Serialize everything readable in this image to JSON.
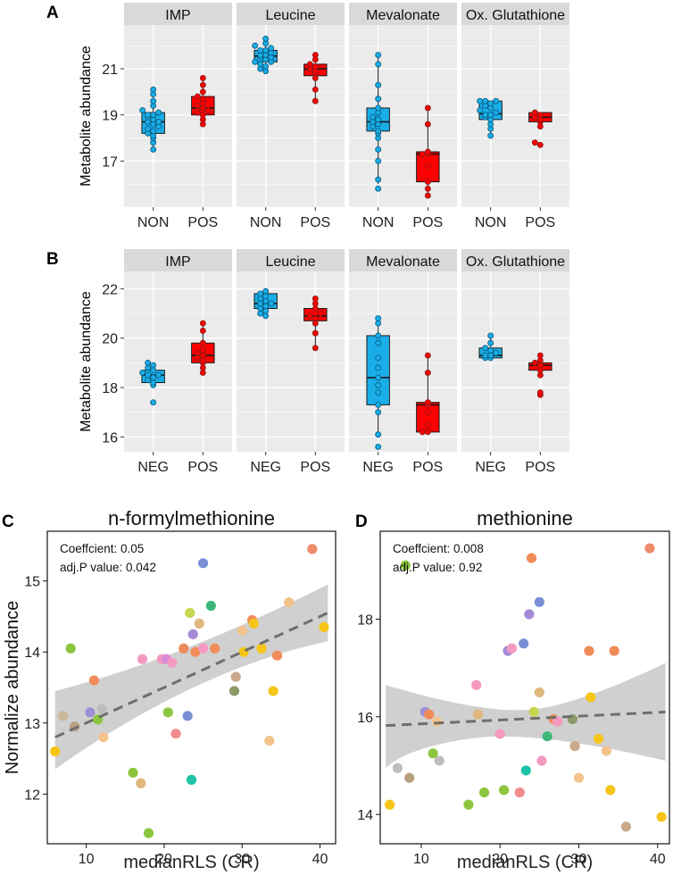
{
  "panel_letters": [
    "A",
    "B",
    "C",
    "D"
  ],
  "chart_data": [
    {
      "panel": "A",
      "type": "boxplot",
      "ylabel": "Metabolite abundance",
      "ylim": [
        15.0,
        22.9
      ],
      "yticks": [
        17,
        19,
        21
      ],
      "facets": [
        {
          "title": "IMP",
          "groups": [
            {
              "label": "NON",
              "color": "#1aaee8",
              "min": 17.5,
              "q1": 18.2,
              "median": 18.7,
              "q3": 19.1,
              "max": 20.1,
              "points": [
                17.5,
                17.8,
                18.0,
                18.1,
                18.2,
                18.3,
                18.4,
                18.5,
                18.6,
                18.7,
                18.7,
                18.8,
                18.9,
                19.0,
                19.0,
                19.1,
                19.2,
                19.4,
                19.6,
                19.9,
                20.1
              ]
            },
            {
              "label": "POS",
              "color": "#ff0000",
              "min": 18.6,
              "q1": 19.0,
              "median": 19.3,
              "q3": 19.8,
              "max": 20.6,
              "points": [
                18.6,
                18.8,
                19.0,
                19.1,
                19.2,
                19.3,
                19.4,
                19.5,
                19.7,
                19.8,
                20.0,
                20.3,
                20.6
              ]
            }
          ]
        },
        {
          "title": "Leucine",
          "groups": [
            {
              "label": "NON",
              "color": "#1aaee8",
              "min": 20.9,
              "q1": 21.3,
              "median": 21.55,
              "q3": 21.8,
              "max": 22.3,
              "points": [
                20.9,
                21.0,
                21.1,
                21.2,
                21.3,
                21.3,
                21.4,
                21.5,
                21.5,
                21.6,
                21.6,
                21.7,
                21.8,
                21.8,
                21.9,
                22.0,
                22.1,
                22.3
              ]
            },
            {
              "label": "POS",
              "color": "#ff0000",
              "min": 19.6,
              "q1": 20.7,
              "median": 21.0,
              "q3": 21.2,
              "max": 21.6,
              "points": [
                19.6,
                20.1,
                20.6,
                20.8,
                20.9,
                21.0,
                21.1,
                21.2,
                21.4,
                21.6
              ]
            }
          ]
        },
        {
          "title": "Mevalonate",
          "groups": [
            {
              "label": "NON",
              "color": "#1aaee8",
              "min": 16.0,
              "q1": 18.3,
              "median": 18.7,
              "q3": 19.3,
              "max": 21.6,
              "points": [
                15.8,
                16.2,
                17.0,
                17.5,
                18.0,
                18.2,
                18.3,
                18.5,
                18.6,
                18.7,
                18.8,
                18.9,
                19.1,
                19.3,
                19.7,
                20.3,
                21.2,
                21.6
              ]
            },
            {
              "label": "POS",
              "color": "#ff0000",
              "min": 15.5,
              "q1": 16.1,
              "median": 17.3,
              "q3": 17.4,
              "max": 19.3,
              "points": [
                15.5,
                15.8,
                16.1,
                16.8,
                17.3,
                17.3,
                17.4,
                18.6,
                19.3
              ]
            }
          ]
        },
        {
          "title": "Ox. Glutathione",
          "groups": [
            {
              "label": "NON",
              "color": "#1aaee8",
              "min": 18.1,
              "q1": 18.8,
              "median": 19.05,
              "q3": 19.6,
              "max": 19.6,
              "points": [
                18.1,
                18.4,
                18.6,
                18.8,
                18.9,
                19.0,
                19.0,
                19.1,
                19.2,
                19.3,
                19.4,
                19.5,
                19.6,
                19.6,
                19.6
              ]
            },
            {
              "label": "POS",
              "color": "#ff0000",
              "min": 18.5,
              "q1": 18.7,
              "median": 18.9,
              "q3": 19.1,
              "max": 19.1,
              "points": [
                17.7,
                17.8,
                18.5,
                18.7,
                18.8,
                18.9,
                19.0,
                19.1
              ]
            }
          ]
        }
      ]
    },
    {
      "panel": "B",
      "type": "boxplot",
      "ylabel": "Metabolite abundance",
      "ylim": [
        15.4,
        22.7
      ],
      "yticks": [
        16,
        18,
        20,
        22
      ],
      "facets": [
        {
          "title": "IMP",
          "groups": [
            {
              "label": "NEG",
              "color": "#1aaee8",
              "min": 18.2,
              "q1": 18.2,
              "median": 18.5,
              "q3": 18.7,
              "max": 19.0,
              "points": [
                17.4,
                18.1,
                18.2,
                18.3,
                18.4,
                18.5,
                18.5,
                18.6,
                18.7,
                18.8,
                18.9,
                19.0
              ]
            },
            {
              "label": "POS",
              "color": "#ff0000",
              "min": 18.6,
              "q1": 19.0,
              "median": 19.3,
              "q3": 19.8,
              "max": 20.6,
              "points": [
                18.6,
                18.8,
                19.0,
                19.1,
                19.2,
                19.3,
                19.4,
                19.5,
                19.8,
                20.3,
                20.6
              ]
            }
          ]
        },
        {
          "title": "Leucine",
          "groups": [
            {
              "label": "NEG",
              "color": "#1aaee8",
              "min": 20.9,
              "q1": 21.2,
              "median": 21.4,
              "q3": 21.8,
              "max": 21.9,
              "points": [
                20.9,
                21.0,
                21.1,
                21.2,
                21.3,
                21.4,
                21.4,
                21.5,
                21.6,
                21.7,
                21.8,
                21.9
              ]
            },
            {
              "label": "POS",
              "color": "#ff0000",
              "min": 19.6,
              "q1": 20.7,
              "median": 20.9,
              "q3": 21.2,
              "max": 21.6,
              "points": [
                19.6,
                20.2,
                20.6,
                20.8,
                20.9,
                21.0,
                21.2,
                21.4,
                21.6
              ]
            }
          ]
        },
        {
          "title": "Mevalonate",
          "groups": [
            {
              "label": "NEG",
              "color": "#1aaee8",
              "min": 16.1,
              "q1": 17.3,
              "median": 18.4,
              "q3": 20.1,
              "max": 20.8,
              "points": [
                15.6,
                16.1,
                17.0,
                17.3,
                17.8,
                18.1,
                18.4,
                18.8,
                19.2,
                19.8,
                20.1,
                20.6,
                20.8
              ]
            },
            {
              "label": "POS",
              "color": "#ff0000",
              "min": 16.2,
              "q1": 16.2,
              "median": 17.3,
              "q3": 17.4,
              "max": 19.3,
              "points": [
                16.2,
                16.2,
                16.5,
                17.0,
                17.3,
                17.4,
                18.6,
                19.3
              ]
            }
          ]
        },
        {
          "title": "Ox. Glutathione",
          "groups": [
            {
              "label": "NEG",
              "color": "#1aaee8",
              "min": 19.2,
              "q1": 19.2,
              "median": 19.3,
              "q3": 19.6,
              "max": 20.1,
              "points": [
                19.2,
                19.2,
                19.3,
                19.3,
                19.4,
                19.5,
                19.6,
                19.8,
                20.1
              ]
            },
            {
              "label": "POS",
              "color": "#ff0000",
              "min": 18.5,
              "q1": 18.7,
              "median": 18.9,
              "q3": 19.0,
              "max": 19.3,
              "points": [
                17.7,
                17.8,
                18.5,
                18.7,
                18.9,
                19.0,
                19.1,
                19.3
              ]
            }
          ]
        }
      ]
    },
    {
      "panel": "C",
      "type": "scatter",
      "title": "n-formylmethionine",
      "xlabel": "medianRLS (CR)",
      "ylabel": "Normalize abundance",
      "xlim": [
        5,
        42
      ],
      "ylim": [
        11.3,
        15.7
      ],
      "xticks": [
        10,
        20,
        30,
        40
      ],
      "yticks": [
        12,
        13,
        14,
        15
      ],
      "annotation": [
        "Coeffcient: 0.05",
        "adj.P value: 0.042"
      ],
      "trend": {
        "x": [
          6,
          41
        ],
        "y": [
          12.8,
          14.55
        ]
      },
      "band": {
        "x": [
          6,
          41
        ],
        "upper": [
          13.45,
          14.95
        ],
        "lower": [
          12.35,
          14.15
        ]
      },
      "points": [
        {
          "x": 6,
          "y": 12.6,
          "color": "#f5c518"
        },
        {
          "x": 7,
          "y": 13.1,
          "color": "#c9b99a"
        },
        {
          "x": 8,
          "y": 14.05,
          "color": "#8cc63f"
        },
        {
          "x": 8.5,
          "y": 12.95,
          "color": "#b8a07e"
        },
        {
          "x": 10.5,
          "y": 13.15,
          "color": "#9b8fd6"
        },
        {
          "x": 11,
          "y": 13.6,
          "color": "#f08c5a"
        },
        {
          "x": 11.5,
          "y": 13.05,
          "color": "#8cc63f"
        },
        {
          "x": 12,
          "y": 13.2,
          "color": "#bdbdbd"
        },
        {
          "x": 12.2,
          "y": 12.8,
          "color": "#f2c38b"
        },
        {
          "x": 16,
          "y": 12.3,
          "color": "#8cc63f"
        },
        {
          "x": 17,
          "y": 12.15,
          "color": "#e0b87e"
        },
        {
          "x": 17.2,
          "y": 13.9,
          "color": "#f49ac1"
        },
        {
          "x": 18,
          "y": 11.45,
          "color": "#8cc63f"
        },
        {
          "x": 19.7,
          "y": 13.9,
          "color": "#f49ac1"
        },
        {
          "x": 20.3,
          "y": 13.9,
          "color": "#d98bd6"
        },
        {
          "x": 20.5,
          "y": 13.15,
          "color": "#8cc63f"
        },
        {
          "x": 21,
          "y": 13.85,
          "color": "#f49ac1"
        },
        {
          "x": 21.5,
          "y": 12.85,
          "color": "#f08c8c"
        },
        {
          "x": 22.5,
          "y": 14.05,
          "color": "#f08c5a"
        },
        {
          "x": 23,
          "y": 13.1,
          "color": "#7b8fd6"
        },
        {
          "x": 23.3,
          "y": 14.55,
          "color": "#c7d64f"
        },
        {
          "x": 23.5,
          "y": 12.2,
          "color": "#1fc4a8"
        },
        {
          "x": 23.7,
          "y": 14.25,
          "color": "#a58bd6"
        },
        {
          "x": 24,
          "y": 14.0,
          "color": "#f08c5a"
        },
        {
          "x": 24.5,
          "y": 14.4,
          "color": "#e0b87e"
        },
        {
          "x": 25,
          "y": 14.05,
          "color": "#f49ac1"
        },
        {
          "x": 25,
          "y": 15.25,
          "color": "#7b8fd6"
        },
        {
          "x": 26,
          "y": 14.65,
          "color": "#3cb878"
        },
        {
          "x": 26.5,
          "y": 14.05,
          "color": "#f08c5a"
        },
        {
          "x": 29,
          "y": 13.45,
          "color": "#8c9a6a"
        },
        {
          "x": 29.2,
          "y": 13.65,
          "color": "#c9a88c"
        },
        {
          "x": 30,
          "y": 14.3,
          "color": "#f2c38b"
        },
        {
          "x": 30.2,
          "y": 14.0,
          "color": "#f5c518"
        },
        {
          "x": 31.3,
          "y": 14.45,
          "color": "#f08c5a"
        },
        {
          "x": 31.5,
          "y": 14.4,
          "color": "#f5c518"
        },
        {
          "x": 32.5,
          "y": 14.05,
          "color": "#f5c518"
        },
        {
          "x": 33.5,
          "y": 12.75,
          "color": "#f2c38b"
        },
        {
          "x": 34,
          "y": 13.45,
          "color": "#f5c518"
        },
        {
          "x": 34.5,
          "y": 13.95,
          "color": "#f08c5a"
        },
        {
          "x": 36,
          "y": 14.7,
          "color": "#f2c38b"
        },
        {
          "x": 39,
          "y": 15.45,
          "color": "#f08c6c"
        },
        {
          "x": 40.5,
          "y": 14.35,
          "color": "#f5c518"
        }
      ]
    },
    {
      "panel": "D",
      "type": "scatter",
      "title": "methionine",
      "xlabel": "medianRLS (CR)",
      "ylabel": "",
      "xlim": [
        4.8,
        41.5
      ],
      "ylim": [
        13.4,
        19.8
      ],
      "xticks": [
        10,
        20,
        30,
        40
      ],
      "yticks": [
        14,
        16,
        18
      ],
      "annotation": [
        "Coeffcient: 0.008",
        "adj.P value: 0.92"
      ],
      "trend": {
        "x": [
          5.5,
          41
        ],
        "y": [
          15.82,
          16.1
        ]
      },
      "band": {
        "x": [
          5.5,
          41
        ],
        "upper": [
          16.65,
          17.1
        ],
        "lower": [
          14.95,
          15.1
        ]
      },
      "points": [
        {
          "x": 6,
          "y": 14.2,
          "color": "#f5c518"
        },
        {
          "x": 7,
          "y": 14.95,
          "color": "#bdbdbd"
        },
        {
          "x": 8,
          "y": 19.1,
          "color": "#8cc63f"
        },
        {
          "x": 8.5,
          "y": 14.75,
          "color": "#b8a07e"
        },
        {
          "x": 10.5,
          "y": 16.1,
          "color": "#9b8fd6"
        },
        {
          "x": 11,
          "y": 16.05,
          "color": "#f08c5a"
        },
        {
          "x": 11.5,
          "y": 15.25,
          "color": "#8cc63f"
        },
        {
          "x": 12,
          "y": 15.9,
          "color": "#f2c38b"
        },
        {
          "x": 12.3,
          "y": 15.1,
          "color": "#bdbdbd"
        },
        {
          "x": 16,
          "y": 14.2,
          "color": "#8cc63f"
        },
        {
          "x": 17,
          "y": 16.65,
          "color": "#f49ac1"
        },
        {
          "x": 17.2,
          "y": 16.05,
          "color": "#e0b87e"
        },
        {
          "x": 18,
          "y": 14.45,
          "color": "#8cc63f"
        },
        {
          "x": 20,
          "y": 15.65,
          "color": "#f49ac1"
        },
        {
          "x": 20.5,
          "y": 14.5,
          "color": "#8cc63f"
        },
        {
          "x": 21,
          "y": 17.35,
          "color": "#a58bd6"
        },
        {
          "x": 21.5,
          "y": 17.4,
          "color": "#f49ac1"
        },
        {
          "x": 22.5,
          "y": 14.45,
          "color": "#f08c8c"
        },
        {
          "x": 23,
          "y": 17.5,
          "color": "#7b8fd6"
        },
        {
          "x": 23.3,
          "y": 14.9,
          "color": "#1fc4a8"
        },
        {
          "x": 23.7,
          "y": 18.1,
          "color": "#a58bd6"
        },
        {
          "x": 24,
          "y": 19.25,
          "color": "#f08c5a"
        },
        {
          "x": 24.3,
          "y": 16.1,
          "color": "#c7d64f"
        },
        {
          "x": 25,
          "y": 18.35,
          "color": "#7b8fd6"
        },
        {
          "x": 25,
          "y": 16.5,
          "color": "#e0b87e"
        },
        {
          "x": 25.3,
          "y": 15.1,
          "color": "#f49ac1"
        },
        {
          "x": 26,
          "y": 15.6,
          "color": "#3cb878"
        },
        {
          "x": 26.8,
          "y": 15.95,
          "color": "#f08c5a"
        },
        {
          "x": 27.3,
          "y": 15.9,
          "color": "#f49ac1"
        },
        {
          "x": 29.2,
          "y": 15.95,
          "color": "#8c9a6a"
        },
        {
          "x": 29.5,
          "y": 15.4,
          "color": "#c9a88c"
        },
        {
          "x": 30,
          "y": 14.75,
          "color": "#f2c38b"
        },
        {
          "x": 31.3,
          "y": 17.35,
          "color": "#f08c5a"
        },
        {
          "x": 31.5,
          "y": 16.4,
          "color": "#f5c518"
        },
        {
          "x": 32.5,
          "y": 15.55,
          "color": "#f5c518"
        },
        {
          "x": 33.5,
          "y": 15.3,
          "color": "#f2c38b"
        },
        {
          "x": 34,
          "y": 14.5,
          "color": "#f5c518"
        },
        {
          "x": 34.5,
          "y": 17.35,
          "color": "#f08c5a"
        },
        {
          "x": 36,
          "y": 13.75,
          "color": "#c9a88c"
        },
        {
          "x": 39,
          "y": 19.45,
          "color": "#f08c6c"
        },
        {
          "x": 40.5,
          "y": 13.95,
          "color": "#f5c518"
        }
      ]
    }
  ]
}
